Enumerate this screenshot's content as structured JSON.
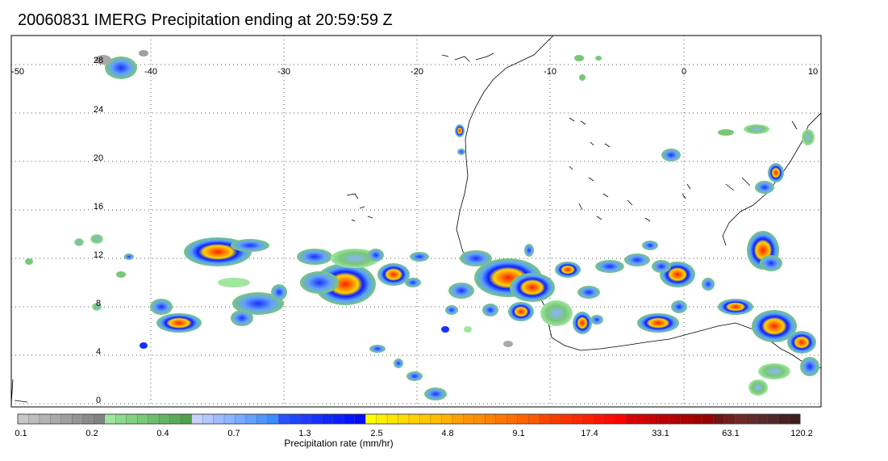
{
  "title": "20060831 IMERG Precipitation ending at 20:59:59 Z",
  "map": {
    "lon_labels": [
      "-50",
      "-40",
      "-30",
      "-20",
      "-10",
      "0",
      "10"
    ],
    "lat_labels": [
      "28",
      "24",
      "20",
      "16",
      "12",
      "8",
      "4",
      "0"
    ],
    "lon_range": [
      -50,
      10
    ],
    "lat_range": [
      -0.5,
      30
    ],
    "grid": "dotted"
  },
  "colorbar": {
    "labels": [
      "0.1",
      "0.2",
      "0.4",
      "0.7",
      "1.3",
      "2.5",
      "4.8",
      "9.1",
      "17.4",
      "33.1",
      "63.1",
      "120.2"
    ],
    "colors": [
      "#c8c8c8",
      "#bebebe",
      "#b4b4b4",
      "#aaaaaa",
      "#a0a0a0",
      "#969696",
      "#8c8c8c",
      "#828282",
      "#a0e6a0",
      "#8cdc8c",
      "#82d282",
      "#78c878",
      "#6ebe6e",
      "#64b464",
      "#5aaa5a",
      "#50a050",
      "#c8d2ff",
      "#b4c8ff",
      "#a0beff",
      "#8cb4ff",
      "#78aaff",
      "#64a0ff",
      "#5096ff",
      "#3c8cff",
      "#2850ff",
      "#1e46ff",
      "#1e3cff",
      "#1432ff",
      "#0a28ff",
      "#0a1eff",
      "#0014ff",
      "#000aff",
      "#ffff00",
      "#fff000",
      "#ffe600",
      "#ffdc00",
      "#ffd200",
      "#ffc800",
      "#ffbe00",
      "#ffb400",
      "#ffa000",
      "#ff9600",
      "#ff8c00",
      "#ff8200",
      "#ff7800",
      "#ff6e00",
      "#ff6400",
      "#ff5a00",
      "#ff4600",
      "#ff3c00",
      "#ff3200",
      "#ff2800",
      "#ff1e00",
      "#ff1400",
      "#ff0a00",
      "#ff0000",
      "#dc0000",
      "#d20000",
      "#c80000",
      "#be0000",
      "#b40000",
      "#aa0000",
      "#a00000",
      "#960000",
      "#6e1414",
      "#6e1e1e",
      "#6e2828",
      "#642828",
      "#5a2828",
      "#502828",
      "#462020",
      "#3c1e1e"
    ],
    "title": "Precipitation rate (mm/hr)"
  }
}
